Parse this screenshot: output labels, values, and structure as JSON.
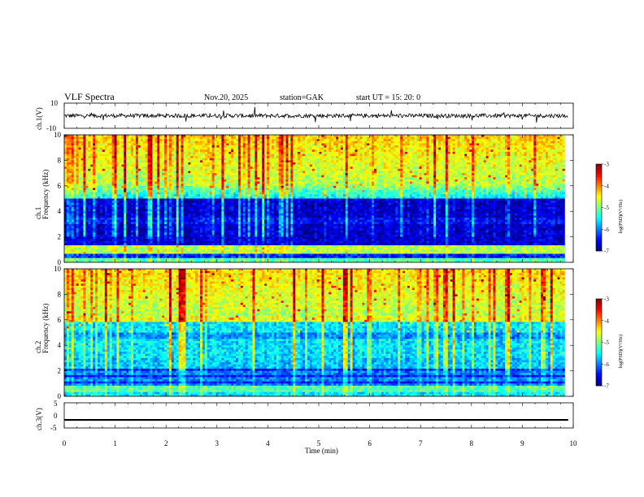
{
  "header": {
    "title": "VLF  Spectra",
    "date": "Nov.20, 2025",
    "station": "station=GAK",
    "start": "start  UT  =    15: 20: 0"
  },
  "chart_data": [
    {
      "type": "line",
      "id": "ch1",
      "ylabel": "ch.1(V)",
      "ylim": [
        -10,
        10
      ],
      "y_ticks": [
        "10",
        "-10"
      ],
      "xlim": [
        0,
        10
      ],
      "description_value_level": 0,
      "color": "#000000"
    },
    {
      "type": "heatmap",
      "id": "ch1_spec",
      "ylabel_ch": "ch.1",
      "ylabel": "Frequency  (kHz)",
      "ylim": [
        0,
        10
      ],
      "y_ticks": [
        "0",
        "2",
        "4",
        "6",
        "8",
        "10"
      ],
      "xlim": [
        0,
        10
      ],
      "data_end_min": 9.83,
      "colorbar": {
        "label": "log(PSD)(V²/Hz)",
        "range": [
          -7,
          -3
        ],
        "ticks": [
          "-3",
          "-4",
          "-5",
          "-6",
          "-7"
        ]
      }
    },
    {
      "type": "heatmap",
      "id": "ch2_spec",
      "ylabel_ch": "ch.2",
      "ylabel": "Frequency  (kHz)",
      "ylim": [
        0,
        10
      ],
      "y_ticks": [
        "0",
        "2",
        "4",
        "6",
        "8",
        "10"
      ],
      "xlim": [
        0,
        10
      ],
      "data_end_min": 9.83,
      "colorbar": {
        "label": "log(PSD)(V²/Hz)",
        "range": [
          -7,
          -3
        ],
        "ticks": [
          "-3",
          "-4",
          "-5",
          "-6",
          "-7"
        ]
      }
    },
    {
      "type": "line",
      "id": "ch3",
      "ylabel": "ch.3(V)",
      "ylim": [
        -5,
        5
      ],
      "y_ticks": [
        "5",
        "0",
        "-5"
      ],
      "xlim": [
        0,
        10
      ],
      "level": -1.8,
      "color": "#000000"
    }
  ],
  "x_axis": {
    "label": "Time  (min)",
    "ticks": [
      "0",
      "1",
      "2",
      "3",
      "4",
      "5",
      "6",
      "7",
      "8",
      "9",
      "10"
    ]
  }
}
